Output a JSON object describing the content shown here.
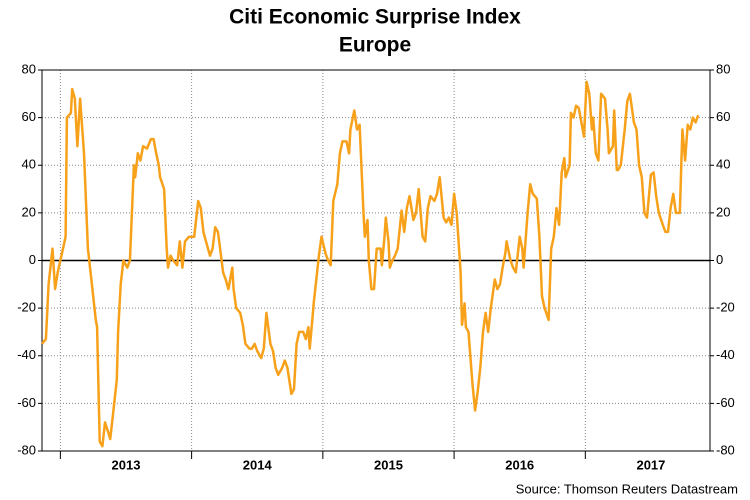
{
  "chart_data": {
    "type": "line",
    "title": "Citi Economic Surprise Index",
    "subtitle": "Europe",
    "source": "Source: Thomson Reuters Datastream",
    "xlim": [
      2012.86,
      2017.95
    ],
    "xticks": [
      {
        "value": 2013.5,
        "label": "2013"
      },
      {
        "value": 2014.5,
        "label": "2014"
      },
      {
        "value": 2015.5,
        "label": "2015"
      },
      {
        "value": 2016.5,
        "label": "2016"
      },
      {
        "value": 2017.5,
        "label": "2017"
      }
    ],
    "xgrid": [
      2013,
      2014,
      2015,
      2016,
      2017
    ],
    "ylim": [
      -80,
      80
    ],
    "yticks": [
      -80,
      -60,
      -40,
      -20,
      0,
      20,
      40,
      60,
      80
    ],
    "y2lim": [
      -80,
      80
    ],
    "y2ticks": [
      -80,
      -60,
      -40,
      -20,
      0,
      20,
      40,
      60,
      80
    ],
    "grid": true,
    "series": [
      {
        "color": "#f7a11a",
        "x": [
          2012.86,
          2012.89,
          2012.91,
          2012.94,
          2012.96,
          2012.98,
          2013.02,
          2013.04,
          2013.05,
          2013.08,
          2013.09,
          2013.11,
          2013.13,
          2013.15,
          2013.18,
          2013.21,
          2013.24,
          2013.27,
          2013.28,
          2013.3,
          2013.32,
          2013.34,
          2013.37,
          2013.38,
          2013.4,
          2013.43,
          2013.44,
          2013.46,
          2013.48,
          2013.51,
          2013.53,
          2013.56,
          2013.57,
          2013.59,
          2013.61,
          2013.63,
          2013.66,
          2013.69,
          2013.71,
          2013.73,
          2013.75,
          2013.76,
          2013.79,
          2013.81,
          2013.82,
          2013.84,
          2013.86,
          2013.89,
          2013.91,
          2013.93,
          2013.95,
          2013.98,
          2014.02,
          2014.05,
          2014.07,
          2014.09,
          2014.11,
          2014.14,
          2014.16,
          2014.18,
          2014.2,
          2014.21,
          2014.24,
          2014.26,
          2014.28,
          2014.31,
          2014.32,
          2014.34,
          2014.37,
          2014.39,
          2014.41,
          2014.44,
          2014.46,
          2014.48,
          2014.5,
          2014.53,
          2014.55,
          2014.57,
          2014.6,
          2014.62,
          2014.64,
          2014.66,
          2014.69,
          2014.71,
          2014.73,
          2014.76,
          2014.78,
          2014.8,
          2014.82,
          2014.85,
          2014.87,
          2014.89,
          2014.9,
          2014.92,
          2014.93,
          2014.95,
          2014.97,
          2014.99,
          2015.02,
          2015.04,
          2015.06,
          2015.08,
          2015.11,
          2015.13,
          2015.15,
          2015.18,
          2015.2,
          2015.21,
          2015.24,
          2015.26,
          2015.28,
          2015.31,
          2015.32,
          2015.34,
          2015.35,
          2015.37,
          2015.39,
          2015.41,
          2015.44,
          2015.45,
          2015.47,
          2015.48,
          2015.5,
          2015.51,
          2015.53,
          2015.55,
          2015.57,
          2015.6,
          2015.62,
          2015.64,
          2015.66,
          2015.69,
          2015.71,
          2015.73,
          2015.76,
          2015.78,
          2015.8,
          2015.82,
          2015.85,
          2015.87,
          2015.89,
          2015.92,
          2015.94,
          2015.96,
          2015.98,
          2016.0,
          2016.02,
          2016.05,
          2016.06,
          2016.08,
          2016.09,
          2016.11,
          2016.14,
          2016.16,
          2016.18,
          2016.2,
          2016.22,
          2016.24,
          2016.26,
          2016.28,
          2016.31,
          2016.33,
          2016.35,
          2016.37,
          2016.39,
          2016.4,
          2016.43,
          2016.45,
          2016.47,
          2016.5,
          2016.52,
          2016.53,
          2016.56,
          2016.58,
          2016.6,
          2016.63,
          2016.65,
          2016.67,
          2016.69,
          2016.72,
          2016.74,
          2016.76,
          2016.78,
          2016.8,
          2016.82,
          2016.84,
          2016.85,
          2016.88,
          2016.89,
          2016.91,
          2016.93,
          2016.95,
          2016.98,
          2016.99,
          2017.01,
          2017.03,
          2017.05,
          2017.06,
          2017.08,
          2017.1,
          2017.12,
          2017.15,
          2017.17,
          2017.18,
          2017.21,
          2017.22,
          2017.24,
          2017.25,
          2017.27,
          2017.3,
          2017.32,
          2017.34,
          2017.37,
          2017.39,
          2017.41,
          2017.43,
          2017.45,
          2017.47,
          2017.5,
          2017.52,
          2017.54,
          2017.56,
          2017.59,
          2017.61,
          2017.63,
          2017.65,
          2017.67,
          2017.69,
          2017.72,
          2017.74,
          2017.76,
          2017.78,
          2017.8,
          2017.82,
          2017.84,
          2017.86
        ],
        "values": [
          -35,
          -33,
          -10,
          5,
          -12,
          -5,
          5,
          10,
          60,
          62,
          72,
          68,
          48,
          68,
          45,
          5,
          -10,
          -25,
          -28,
          -76,
          -78,
          -68,
          -73,
          -75,
          -65,
          -50,
          -30,
          -10,
          0,
          -3,
          0,
          40,
          35,
          45,
          42,
          48,
          47,
          51,
          51,
          45,
          40,
          35,
          30,
          5,
          -3,
          2,
          0,
          -2,
          8,
          -3,
          8,
          10,
          10,
          25,
          22,
          12,
          8,
          2,
          5,
          14,
          12,
          8,
          -5,
          -8,
          -12,
          -3,
          -12,
          -20,
          -22,
          -27,
          -35,
          -37,
          -37,
          -35,
          -38,
          -41,
          -37,
          -22,
          -35,
          -38,
          -45,
          -48,
          -45,
          -42,
          -45,
          -56,
          -54,
          -35,
          -30,
          -30,
          -33,
          -28,
          -37,
          -25,
          -18,
          -8,
          2,
          10,
          3,
          0,
          -2,
          25,
          32,
          45,
          50,
          50,
          45,
          55,
          63,
          55,
          57,
          20,
          10,
          17,
          0,
          -12,
          -12,
          5,
          5,
          -2,
          10,
          18,
          8,
          -3,
          0,
          2,
          5,
          21,
          12,
          22,
          27,
          17,
          20,
          30,
          10,
          8,
          22,
          27,
          25,
          28,
          35,
          18,
          16,
          18,
          15,
          28,
          20,
          -5,
          -27,
          -18,
          -28,
          -30,
          -52,
          -63,
          -55,
          -45,
          -30,
          -22,
          -30,
          -20,
          -8,
          -12,
          -10,
          -3,
          3,
          8,
          0,
          -3,
          -5,
          10,
          5,
          -3,
          20,
          32,
          28,
          26,
          10,
          -15,
          -20,
          -25,
          5,
          10,
          22,
          15,
          37,
          43,
          35,
          40,
          62,
          60,
          65,
          64,
          55,
          52,
          75,
          70,
          55,
          60,
          45,
          42,
          70,
          68,
          55,
          45,
          48,
          63,
          38,
          38,
          40,
          55,
          67,
          70,
          58,
          55,
          40,
          35,
          20,
          18,
          36,
          37,
          27,
          20,
          15,
          12,
          12,
          22,
          28,
          20,
          20,
          55,
          42,
          57,
          55,
          60,
          58,
          61
        ]
      }
    ]
  }
}
